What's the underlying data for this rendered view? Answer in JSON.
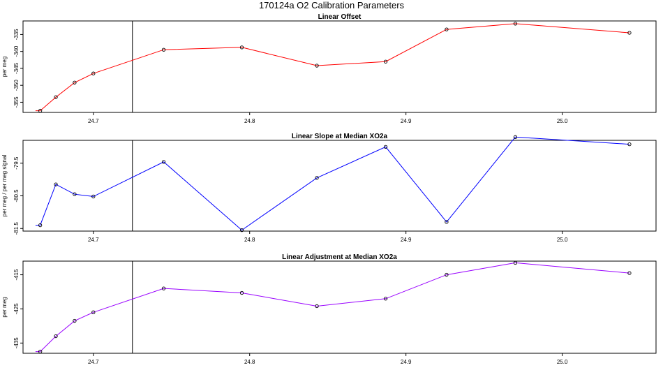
{
  "title": "170124a   O2 Calibration Parameters",
  "chart_data": [
    {
      "type": "line",
      "title": "Linear Offset",
      "ylabel": "per meg",
      "color": "#ff0000",
      "xlim": [
        24.655,
        25.06
      ],
      "ylim": [
        -358,
        -331
      ],
      "xticks": [
        "24.7",
        "24.8",
        "24.9",
        "25.0"
      ],
      "yticks": [
        "-335",
        "-340",
        "-345",
        "-350",
        "-355"
      ],
      "vline_x": 24.725,
      "lead_in": [
        24.663,
        -357.5
      ],
      "x": [
        24.666,
        24.676,
        24.688,
        24.7,
        24.745,
        24.795,
        24.843,
        24.887,
        24.926,
        24.97,
        25.043
      ],
      "y": [
        -357.5,
        -353.5,
        -349.2,
        -346.5,
        -339.5,
        -338.8,
        -344.2,
        -343.0,
        -333.5,
        -331.8,
        -334.5
      ]
    },
    {
      "type": "line",
      "title": "Linear Slope at Median XO2a",
      "ylabel": "per meg / per meg signal",
      "color": "#0000ff",
      "xlim": [
        24.655,
        25.06
      ],
      "ylim": [
        -81.58,
        -78.8
      ],
      "xticks": [
        "24.7",
        "24.8",
        "24.9",
        "25.0"
      ],
      "yticks": [
        "-79.5",
        "-80.5",
        "-81.5"
      ],
      "vline_x": 24.725,
      "lead_in": [
        24.663,
        -81.4
      ],
      "x": [
        24.666,
        24.676,
        24.688,
        24.7,
        24.745,
        24.795,
        24.843,
        24.887,
        24.926,
        24.97,
        25.043
      ],
      "y": [
        -81.4,
        -80.15,
        -80.45,
        -80.52,
        -79.46,
        -81.55,
        -79.95,
        -79.0,
        -81.3,
        -78.7,
        -78.92
      ]
    },
    {
      "type": "line",
      "title": "Linear Adjustment at Median XO2a",
      "ylabel": "per meg",
      "color": "#9900ff",
      "xlim": [
        24.655,
        25.06
      ],
      "ylim": [
        -438,
        -411
      ],
      "xticks": [
        "24.7",
        "24.8",
        "24.9",
        "25.0"
      ],
      "yticks": [
        "-415",
        "-425",
        "-435"
      ],
      "vline_x": 24.725,
      "lead_in": [
        24.663,
        -437.5
      ],
      "x": [
        24.666,
        24.676,
        24.688,
        24.7,
        24.745,
        24.795,
        24.843,
        24.887,
        24.926,
        24.97,
        25.043
      ],
      "y": [
        -437.5,
        -433.0,
        -428.5,
        -426.0,
        -419.0,
        -420.3,
        -424.2,
        -422.0,
        -415.0,
        -411.5,
        -414.5
      ]
    }
  ]
}
